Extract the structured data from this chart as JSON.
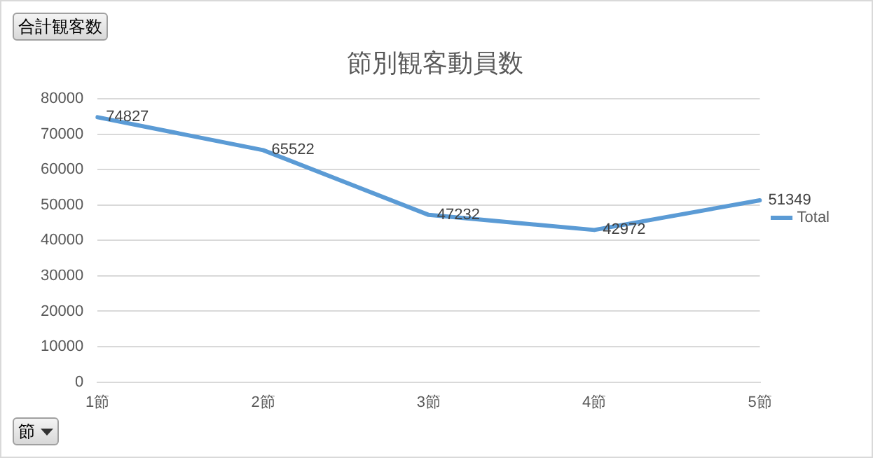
{
  "chart_data": {
    "type": "line",
    "title": "節別観客動員数",
    "categories": [
      "1節",
      "2節",
      "3節",
      "4節",
      "5節"
    ],
    "series": [
      {
        "name": "Total",
        "color": "#5b9bd5",
        "values": [
          74827,
          65522,
          47232,
          42972,
          51349
        ]
      }
    ],
    "ylim": [
      0,
      80000
    ],
    "yticks": [
      0,
      10000,
      20000,
      30000,
      40000,
      50000,
      60000,
      70000,
      80000
    ],
    "grid": "y",
    "legend": "right",
    "marker": "none",
    "line_style": "solid",
    "data_labels": true,
    "annotations": [
      "合計観客数",
      "節"
    ]
  }
}
